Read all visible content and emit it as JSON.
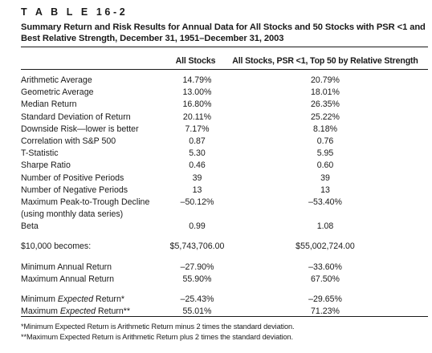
{
  "table_label": "T A B L E  16-2",
  "title": "Summary Return and Risk Results for Annual Data for All Stocks and 50 Stocks with PSR <1 and Best Relative Strength, December 31, 1951–December 31, 2003",
  "columns": {
    "a": "All Stocks",
    "b": "All Stocks, PSR <1, Top 50 by Relative Strength"
  },
  "rows": [
    {
      "label": "Arithmetic Average",
      "a": "14.79%",
      "b": "20.79%"
    },
    {
      "label": "Geometric Average",
      "a": "13.00%",
      "b": "18.01%"
    },
    {
      "label": "Median Return",
      "a": "16.80%",
      "b": "26.35%"
    },
    {
      "label": "Standard Deviation of Return",
      "a": "20.11%",
      "b": "25.22%"
    },
    {
      "label": "Downside Risk—lower is better",
      "a": "7.17%",
      "b": "8.18%"
    },
    {
      "label": "Correlation with S&P 500",
      "a": "0.87",
      "b": "0.76"
    },
    {
      "label": "T-Statistic",
      "a": "5.30",
      "b": "5.95"
    },
    {
      "label": "Sharpe Ratio",
      "a": "0.46",
      "b": "0.60"
    },
    {
      "label": "Number of Positive Periods",
      "a": "39",
      "b": "39"
    },
    {
      "label": "Number of Negative Periods",
      "a": "13",
      "b": "13"
    },
    {
      "label": "Maximum Peak-to-Trough Decline",
      "a": "–50.12%",
      "b": "–53.40%"
    },
    {
      "label": "(using monthly data series)",
      "a": "",
      "b": ""
    },
    {
      "label": "Beta",
      "a": "0.99",
      "b": "1.08"
    }
  ],
  "ending_value": {
    "label": "$10,000 becomes:",
    "a": "$5,743,706.00",
    "b": "$55,002,724.00"
  },
  "min_max": [
    {
      "label": "Minimum Annual Return",
      "a": "–27.90%",
      "b": "–33.60%"
    },
    {
      "label": "Maximum Annual Return",
      "a": "55.90%",
      "b": "67.50%"
    }
  ],
  "expected": [
    {
      "prefix": "Minimum ",
      "italic": "Expected",
      "suffix": " Return*",
      "a": "–25.43%",
      "b": "–29.65%"
    },
    {
      "prefix": "Maximum ",
      "italic": "Expected",
      "suffix": " Return**",
      "a": "55.01%",
      "b": "71.23%"
    }
  ],
  "footnotes": [
    "*Minimum Expected Return is Arithmetic Return minus 2 times the standard deviation.",
    "**Maximum Expected Return is Arithmetic Return plus 2 times the standard deviation."
  ]
}
